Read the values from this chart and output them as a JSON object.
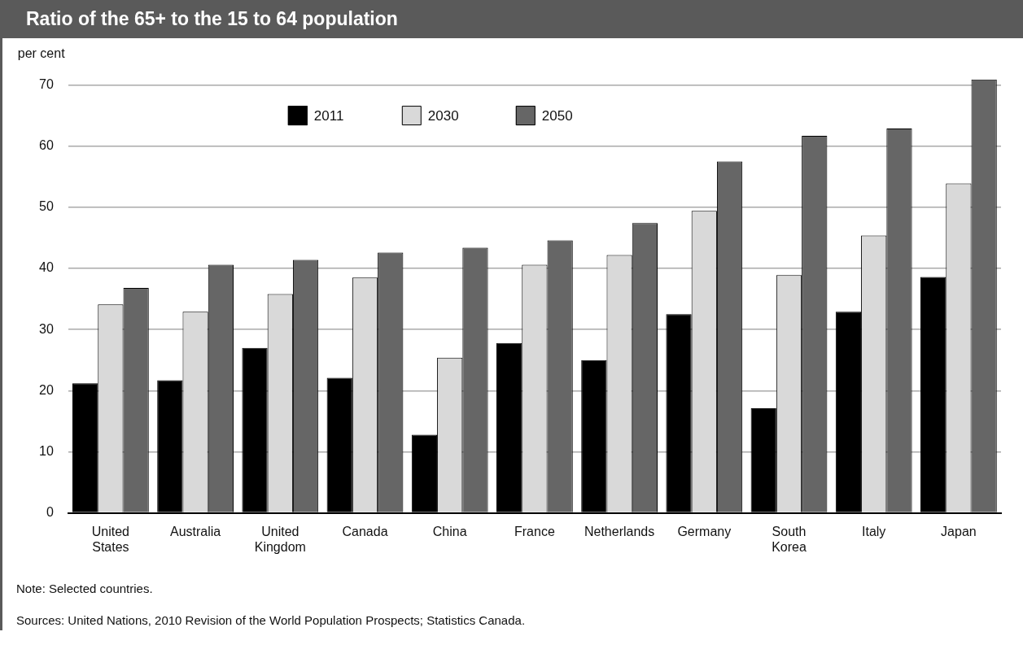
{
  "chart_data": {
    "type": "bar",
    "title": "Ratio of the 65+ to the 15 to 64 population",
    "ylabel": "per cent",
    "categories": [
      "United States",
      "Australia",
      "United Kingdom",
      "Canada",
      "China",
      "France",
      "Netherlands",
      "Germany",
      "South Korea",
      "Italy",
      "Japan"
    ],
    "series": [
      {
        "name": "2011",
        "color": "#000000",
        "values": [
          21.2,
          21.7,
          27.0,
          22.1,
          12.8,
          27.8,
          25.0,
          32.5,
          17.1,
          32.9,
          38.6
        ]
      },
      {
        "name": "2030",
        "color": "#d9d9d9",
        "values": [
          34.1,
          32.9,
          35.8,
          38.5,
          25.4,
          40.6,
          42.2,
          49.4,
          38.9,
          45.4,
          53.9
        ]
      },
      {
        "name": "2050",
        "color": "#666666",
        "values": [
          36.8,
          40.6,
          41.4,
          42.6,
          43.4,
          44.6,
          47.4,
          57.5,
          61.7,
          62.9,
          70.9
        ]
      }
    ],
    "ylim": [
      0,
      71
    ],
    "yticks": [
      0,
      10,
      20,
      30,
      40,
      50,
      60,
      70
    ],
    "grid": "y",
    "legend": "top",
    "annotations": [
      "Note: Selected countries.",
      "Sources: United Nations, 2010 Revision of the World Population Prospects; Statistics Canada."
    ]
  }
}
